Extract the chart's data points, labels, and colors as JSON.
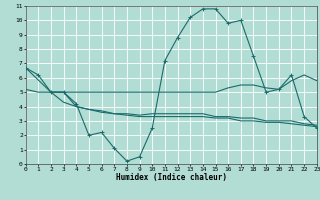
{
  "xlabel": "Humidex (Indice chaleur)",
  "background_color": "#b2ddd4",
  "grid_color": "#ffffff",
  "line_color": "#1a6b6b",
  "xlim": [
    0,
    23
  ],
  "ylim": [
    0,
    11
  ],
  "xticks": [
    0,
    1,
    2,
    3,
    4,
    5,
    6,
    7,
    8,
    9,
    10,
    11,
    12,
    13,
    14,
    15,
    16,
    17,
    18,
    19,
    20,
    21,
    22,
    23
  ],
  "yticks": [
    0,
    1,
    2,
    3,
    4,
    5,
    6,
    7,
    8,
    9,
    10,
    11
  ],
  "series_main": {
    "x": [
      0,
      1,
      2,
      3,
      4,
      5,
      6,
      7,
      8,
      9,
      10,
      11,
      12,
      13,
      14,
      15,
      16,
      17,
      18,
      19,
      20,
      21,
      22,
      23
    ],
    "y": [
      6.7,
      6.2,
      5.0,
      5.0,
      4.2,
      2.0,
      2.2,
      1.1,
      0.2,
      0.5,
      2.5,
      7.2,
      8.8,
      10.2,
      10.8,
      10.8,
      9.8,
      10.0,
      7.5,
      5.0,
      5.2,
      6.2,
      3.3,
      2.5
    ]
  },
  "series_flat_high": {
    "x": [
      0,
      2,
      3,
      4,
      5,
      6,
      7,
      8,
      9,
      10,
      11,
      12,
      13,
      14,
      15,
      16,
      17,
      18,
      19,
      20,
      21,
      22,
      23
    ],
    "y": [
      6.7,
      5.0,
      5.0,
      5.0,
      5.0,
      5.0,
      5.0,
      5.0,
      5.0,
      5.0,
      5.0,
      5.0,
      5.0,
      5.0,
      5.0,
      5.3,
      5.5,
      5.5,
      5.3,
      5.2,
      5.8,
      6.2,
      5.8
    ]
  },
  "series_mid": {
    "x": [
      0,
      1,
      2,
      3,
      4,
      5,
      6,
      7,
      8,
      9,
      10,
      11,
      12,
      13,
      14,
      15,
      16,
      17,
      18,
      19,
      20,
      21,
      22,
      23
    ],
    "y": [
      5.2,
      5.0,
      5.0,
      4.3,
      4.0,
      3.8,
      3.6,
      3.5,
      3.5,
      3.4,
      3.5,
      3.5,
      3.5,
      3.5,
      3.5,
      3.3,
      3.3,
      3.2,
      3.2,
      3.0,
      3.0,
      3.0,
      2.8,
      2.7
    ]
  },
  "series_low": {
    "x": [
      2,
      3,
      4,
      5,
      6,
      7,
      8,
      9,
      10,
      11,
      12,
      13,
      14,
      15,
      16,
      17,
      18,
      19,
      20,
      21,
      22,
      23
    ],
    "y": [
      5.0,
      5.0,
      4.0,
      3.8,
      3.7,
      3.5,
      3.4,
      3.3,
      3.3,
      3.3,
      3.3,
      3.3,
      3.3,
      3.2,
      3.2,
      3.0,
      3.0,
      2.9,
      2.9,
      2.8,
      2.7,
      2.6
    ]
  }
}
